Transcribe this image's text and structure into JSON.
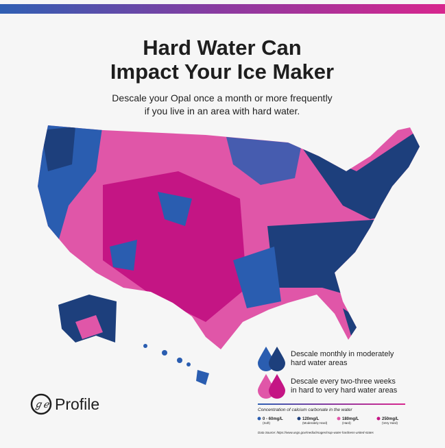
{
  "header": {
    "title": [
      "Hard Water Can",
      "Impact Your Ice Maker"
    ],
    "subtitle": [
      "Descale your Opal once a month or more frequently",
      "if you live in an area with hard water."
    ]
  },
  "legend": [
    {
      "label": [
        "Descale monthly in moderately",
        "hard water areas"
      ]
    },
    {
      "label": [
        "Descale every two-three weeks",
        "in hard to very hard water areas"
      ]
    }
  ],
  "brand": "Profile",
  "scale": {
    "title": "Concentration of calcium carbonate in the water",
    "items": [
      {
        "value": "0 - 60mg/L",
        "note": "(Soft)"
      },
      {
        "value": "120mg/L",
        "note": "(Moderately Hard)"
      },
      {
        "value": "180mg/L",
        "note": "(Hard)"
      },
      {
        "value": "250mg/L",
        "note": "(Very Hard)"
      }
    ],
    "source": "Data Source: https://www.usgs.gov/media/images/map-water-hardness-united-states"
  }
}
